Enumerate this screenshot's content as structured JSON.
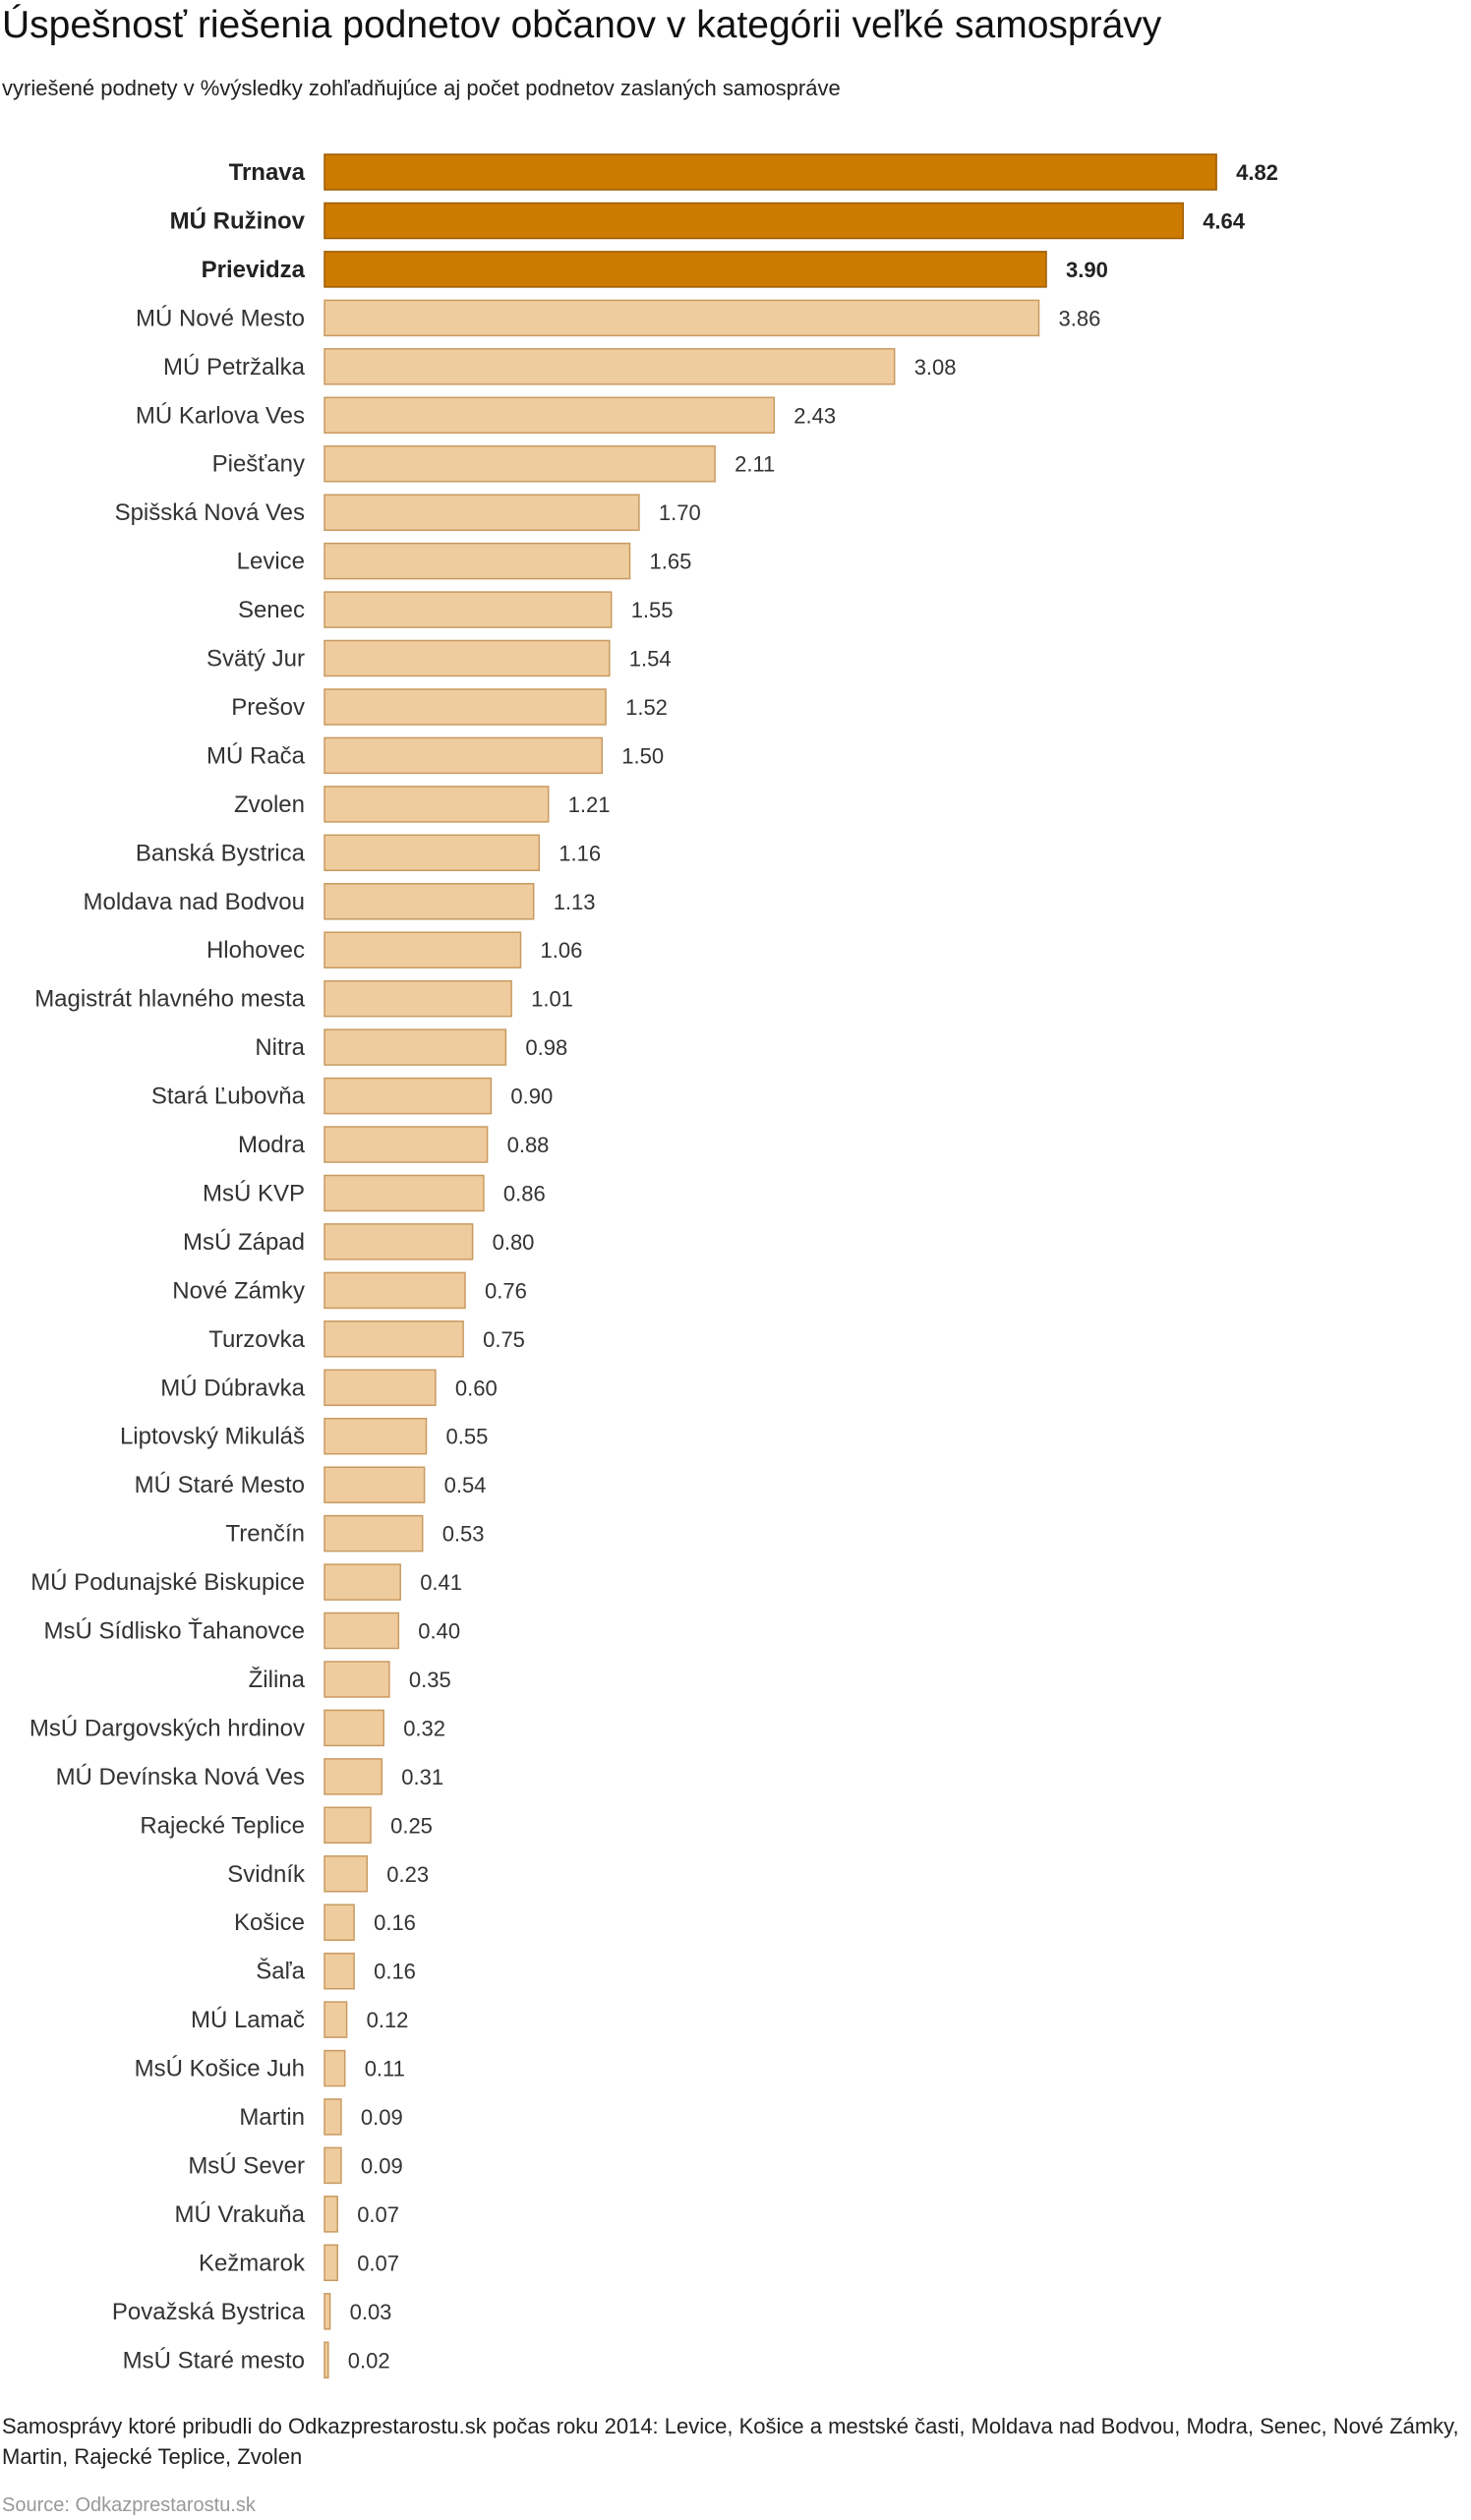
{
  "title": "Úspešnosť riešenia podnetov občanov v kategórii veľké samosprávy",
  "subtitle": "vyriešené podnety v %výsledky zohľadňujúce aj počet podnetov zaslaných samospráve",
  "footnote": "Samosprávy ktoré pribudli do Odkazprestarostu.sk počas roku 2014: Levice, Košice a mestské časti, Moldava nad Bodvou, Modra, Senec, Nové Zámky, Martin, Rajecké Teplice, Zvolen",
  "source": "Source: Odkazprestarostu.sk",
  "colors": {
    "highlight_fill": "#cc7a00",
    "highlight_stroke": "#9c5c00",
    "normal_fill": "#efcc9e",
    "normal_stroke": "#c89a60"
  },
  "chart_data": {
    "type": "bar",
    "orientation": "horizontal",
    "title": "Úspešnosť riešenia podnetov občanov v kategórii veľké samosprávy",
    "subtitle": "vyriešené podnety v %výsledky zohľadňujúce aj počet podnetov zaslaných samospráve",
    "xlim": [
      0,
      5.3
    ],
    "grid": false,
    "highlighted_count": 3,
    "categories": [
      "Trnava",
      "MÚ Ružinov",
      "Prievidza",
      "MÚ Nové Mesto",
      "MÚ Petržalka",
      "MÚ Karlova Ves",
      "Piešťany",
      "Spišská Nová Ves",
      "Levice",
      "Senec",
      "Svätý Jur",
      "Prešov",
      "MÚ Rača",
      "Zvolen",
      "Banská Bystrica",
      "Moldava nad Bodvou",
      "Hlohovec",
      "Magistrát hlavného mesta",
      "Nitra",
      "Stará Ľubovňa",
      "Modra",
      "MsÚ KVP",
      "MsÚ Západ",
      "Nové Zámky",
      "Turzovka",
      "MÚ Dúbravka",
      "Liptovský Mikuláš",
      "MÚ Staré Mesto",
      "Trenčín",
      "MÚ Podunajské Biskupice",
      "MsÚ Sídlisko Ťahanovce",
      "Žilina",
      "MsÚ Dargovských hrdinov",
      "MÚ Devínska Nová Ves",
      "Rajecké Teplice",
      "Svidník",
      "Košice",
      "Šaľa",
      "MÚ Lamač",
      "MsÚ Košice Juh",
      "Martin",
      "MsÚ Sever",
      "MÚ Vrakuňa",
      "Kežmarok",
      "Považská Bystrica",
      "MsÚ Staré mesto"
    ],
    "values": [
      4.82,
      4.64,
      3.9,
      3.86,
      3.08,
      2.43,
      2.11,
      1.7,
      1.65,
      1.55,
      1.54,
      1.52,
      1.5,
      1.21,
      1.16,
      1.13,
      1.06,
      1.01,
      0.98,
      0.9,
      0.88,
      0.86,
      0.8,
      0.76,
      0.75,
      0.6,
      0.55,
      0.54,
      0.53,
      0.41,
      0.4,
      0.35,
      0.32,
      0.31,
      0.25,
      0.23,
      0.16,
      0.16,
      0.12,
      0.11,
      0.09,
      0.09,
      0.07,
      0.07,
      0.03,
      0.02
    ],
    "value_labels": [
      "4.82",
      "4.64",
      "3.90",
      "3.86",
      "3.08",
      "2.43",
      "2.11",
      "1.70",
      "1.65",
      "1.55",
      "1.54",
      "1.52",
      "1.50",
      "1.21",
      "1.16",
      "1.13",
      "1.06",
      "1.01",
      "0.98",
      "0.90",
      "0.88",
      "0.86",
      "0.80",
      "0.76",
      "0.75",
      "0.60",
      "0.55",
      "0.54",
      "0.53",
      "0.41",
      "0.40",
      "0.35",
      "0.32",
      "0.31",
      "0.25",
      "0.23",
      "0.16",
      "0.16",
      "0.12",
      "0.11",
      "0.09",
      "0.09",
      "0.07",
      "0.07",
      "0.03",
      "0.02"
    ]
  }
}
